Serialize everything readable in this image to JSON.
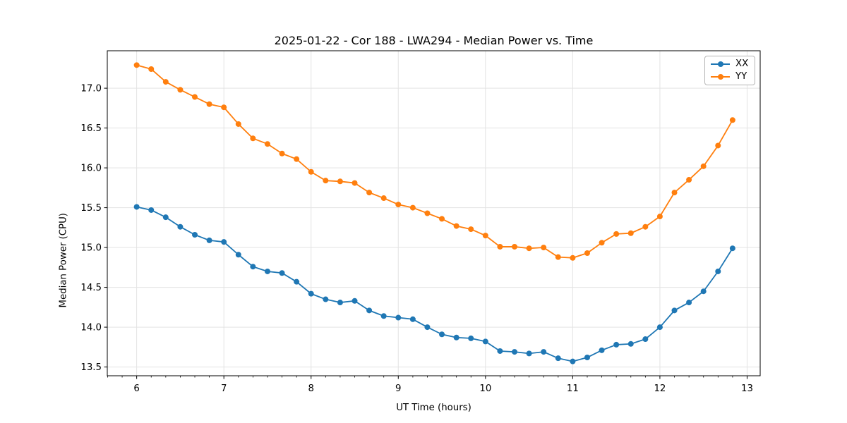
{
  "chart_data": {
    "type": "line",
    "title": "2025-01-22 - Cor 188 - LWA294 - Median Power vs. Time",
    "xlabel": "UT Time (hours)",
    "ylabel": "Median Power (CPU)",
    "xlim": [
      5.663,
      13.15
    ],
    "ylim": [
      13.39,
      17.47
    ],
    "grid": true,
    "legend_position": "upper right",
    "xticks": {
      "values": [
        6,
        7,
        8,
        9,
        10,
        11,
        12,
        13
      ],
      "labels": [
        "6",
        "7",
        "8",
        "9",
        "10",
        "11",
        "12",
        "13"
      ]
    },
    "x_minor_interval": 0.16667,
    "yticks": {
      "values": [
        13.5,
        14.0,
        14.5,
        15.0,
        15.5,
        16.0,
        16.5,
        17.0
      ],
      "labels": [
        "13.5",
        "14.0",
        "14.5",
        "15.0",
        "15.5",
        "16.0",
        "16.5",
        "17.0"
      ]
    },
    "colors": {
      "series_xx": "#1f77b4",
      "series_yy": "#ff7f0e",
      "grid": "#e3e3e3",
      "spine": "#000000",
      "text": "#000000"
    },
    "x": [
      6.0,
      6.1667,
      6.3333,
      6.5,
      6.6667,
      6.8333,
      7.0,
      7.1667,
      7.3333,
      7.5,
      7.6667,
      7.8333,
      8.0,
      8.1667,
      8.3333,
      8.5,
      8.6667,
      8.8333,
      9.0,
      9.1667,
      9.3333,
      9.5,
      9.6667,
      9.8333,
      10.0,
      10.1667,
      10.3333,
      10.5,
      10.6667,
      10.8333,
      11.0,
      11.1667,
      11.3333,
      11.5,
      11.6667,
      11.8333,
      12.0,
      12.1667,
      12.3333,
      12.5,
      12.6667,
      12.8333
    ],
    "series": [
      {
        "name": "XX",
        "color": "#1f77b4",
        "values": [
          15.51,
          15.47,
          15.38,
          15.26,
          15.16,
          15.09,
          15.07,
          14.91,
          14.76,
          14.7,
          14.68,
          14.57,
          14.42,
          14.35,
          14.31,
          14.33,
          14.21,
          14.14,
          14.12,
          14.1,
          14.0,
          13.91,
          13.87,
          13.86,
          13.82,
          13.7,
          13.69,
          13.67,
          13.69,
          13.61,
          13.57,
          13.62,
          13.71,
          13.78,
          13.79,
          13.85,
          14.0,
          14.21,
          14.31,
          14.45,
          14.7,
          14.99
        ]
      },
      {
        "name": "YY",
        "color": "#ff7f0e",
        "values": [
          17.29,
          17.24,
          17.08,
          16.98,
          16.89,
          16.8,
          16.76,
          16.55,
          16.37,
          16.3,
          16.18,
          16.11,
          15.95,
          15.84,
          15.83,
          15.81,
          15.69,
          15.62,
          15.54,
          15.5,
          15.43,
          15.36,
          15.27,
          15.23,
          15.15,
          15.01,
          15.01,
          14.99,
          15.0,
          14.88,
          14.87,
          14.93,
          15.06,
          15.17,
          15.18,
          15.26,
          15.39,
          15.69,
          15.85,
          16.02,
          16.28,
          16.6
        ]
      }
    ]
  }
}
